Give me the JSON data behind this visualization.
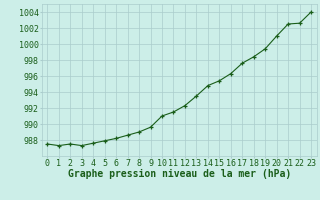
{
  "hours": [
    0,
    1,
    2,
    3,
    4,
    5,
    6,
    7,
    8,
    9,
    10,
    11,
    12,
    13,
    14,
    15,
    16,
    17,
    18,
    19,
    20,
    21,
    22,
    23
  ],
  "pressure": [
    987.5,
    987.3,
    987.5,
    987.3,
    987.6,
    987.9,
    988.2,
    988.6,
    989.0,
    989.6,
    991.0,
    991.5,
    992.3,
    993.5,
    994.8,
    995.4,
    996.3,
    997.6,
    998.4,
    999.4,
    1001.0,
    1002.5,
    1002.6,
    1004.0
  ],
  "xlim": [
    -0.5,
    23.5
  ],
  "ylim": [
    986,
    1005
  ],
  "yticks": [
    988,
    990,
    992,
    994,
    996,
    998,
    1000,
    1002,
    1004
  ],
  "xticks": [
    0,
    1,
    2,
    3,
    4,
    5,
    6,
    7,
    8,
    9,
    10,
    11,
    12,
    13,
    14,
    15,
    16,
    17,
    18,
    19,
    20,
    21,
    22,
    23
  ],
  "line_color": "#1a5e1a",
  "marker_color": "#1a5e1a",
  "bg_color": "#cceee8",
  "grid_color": "#aacccc",
  "xlabel": "Graphe pression niveau de la mer (hPa)",
  "xlabel_fontsize": 7,
  "tick_fontsize": 6,
  "marker_size": 3,
  "linewidth": 0.8
}
